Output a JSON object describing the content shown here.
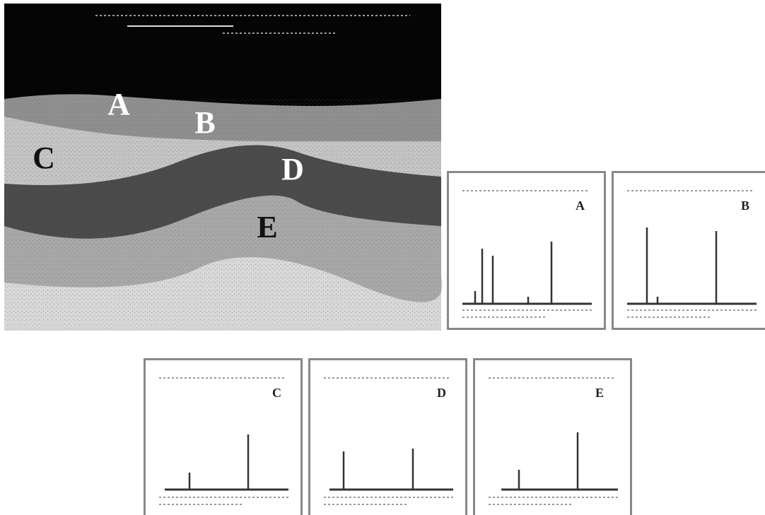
{
  "micrograph": {
    "region_labels": [
      "A",
      "B",
      "C",
      "D",
      "E"
    ]
  },
  "spectra": [
    {
      "label": "A"
    },
    {
      "label": "B"
    },
    {
      "label": "C"
    },
    {
      "label": "D"
    },
    {
      "label": "E"
    }
  ]
}
